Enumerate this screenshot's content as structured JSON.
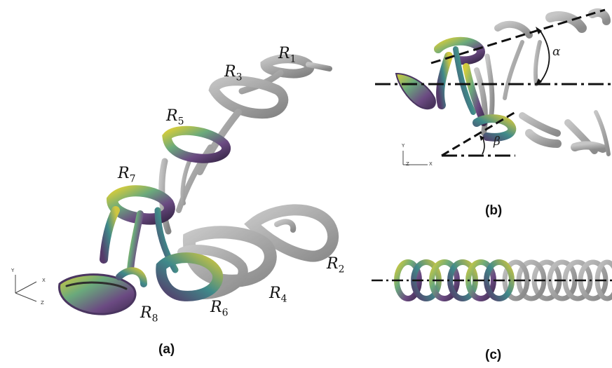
{
  "panel_a": {
    "caption": "(a)",
    "rings": [
      {
        "letter": "R",
        "index": "1"
      },
      {
        "letter": "R",
        "index": "2"
      },
      {
        "letter": "R",
        "index": "3"
      },
      {
        "letter": "R",
        "index": "4"
      },
      {
        "letter": "R",
        "index": "5"
      },
      {
        "letter": "R",
        "index": "6"
      },
      {
        "letter": "R",
        "index": "7"
      },
      {
        "letter": "R",
        "index": "8"
      }
    ],
    "axes": {
      "y": "Y",
      "x": "X",
      "z": "Z"
    }
  },
  "panel_b": {
    "caption": "(b)",
    "angle_alpha": "α",
    "angle_beta": "β",
    "axes": {
      "y": "Y",
      "x": "X",
      "z": "Z"
    }
  },
  "panel_c": {
    "caption": "(c)"
  },
  "colors": {
    "gray_vortex": "#8a8a8a",
    "yellow": "#c9c23a",
    "green": "#5aa37a",
    "purple": "#5a3d6e",
    "teal": "#3f8a8a"
  }
}
